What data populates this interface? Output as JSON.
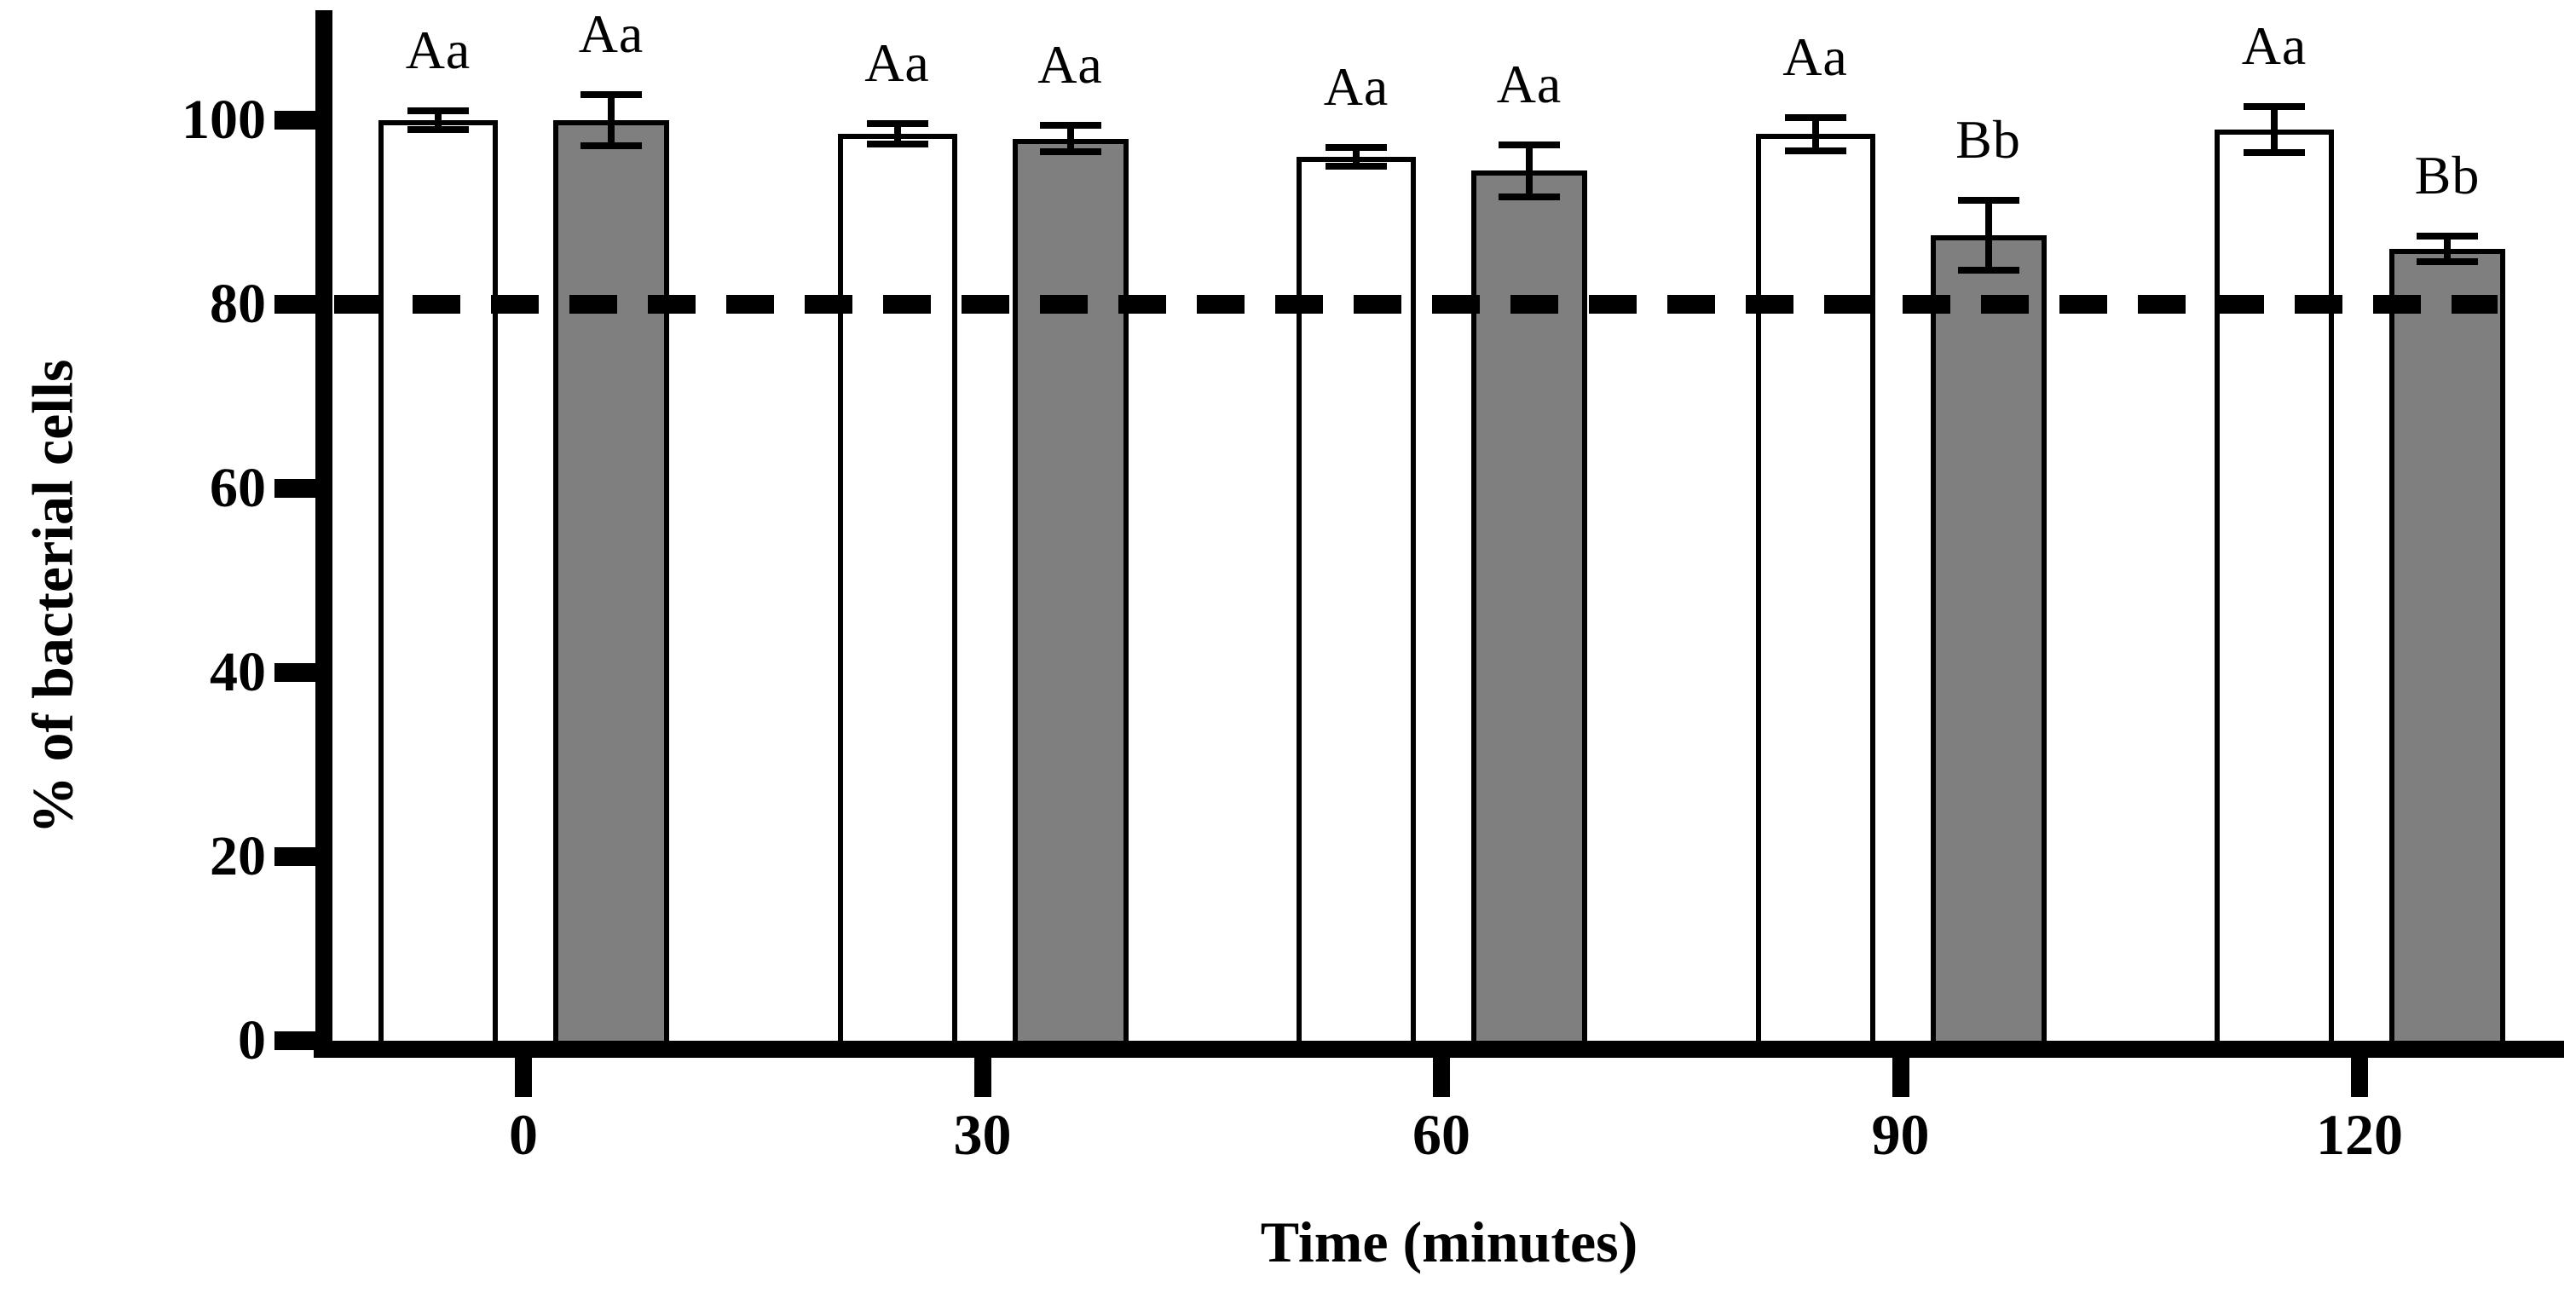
{
  "chart_data": {
    "type": "bar",
    "title": "",
    "xlabel": "Time (minutes)",
    "ylabel": "% of bacterial cells",
    "categories": [
      "0",
      "30",
      "60",
      "90",
      "120"
    ],
    "y_ticks": [
      0,
      20,
      40,
      60,
      80,
      100
    ],
    "ylim": [
      0,
      112
    ],
    "grid": false,
    "legend_position": "none",
    "threshold_line": {
      "value": 80,
      "style": "dashed",
      "color": "#000000"
    },
    "series": [
      {
        "name": "open-bars",
        "fill": "#ffffff",
        "values": [
          100,
          98.5,
          96,
          98.5,
          99
        ],
        "errors": [
          1,
          1.1,
          1,
          1.8,
          2.5
        ],
        "sig_labels": [
          "Aa",
          "Aa",
          "Aa",
          "Aa",
          "Aa"
        ]
      },
      {
        "name": "filled-bars",
        "fill": "#7f7f7f",
        "values": [
          100,
          98,
          94.5,
          87.5,
          86
        ],
        "errors": [
          2.8,
          1.4,
          2.8,
          3.8,
          1.4
        ],
        "sig_labels": [
          "Aa",
          "Aa",
          "Aa",
          "Bb",
          "Bb"
        ]
      }
    ],
    "colors": {
      "axis": "#000000",
      "error_bar": "#000000",
      "text": "#000000",
      "background": "#ffffff"
    }
  }
}
